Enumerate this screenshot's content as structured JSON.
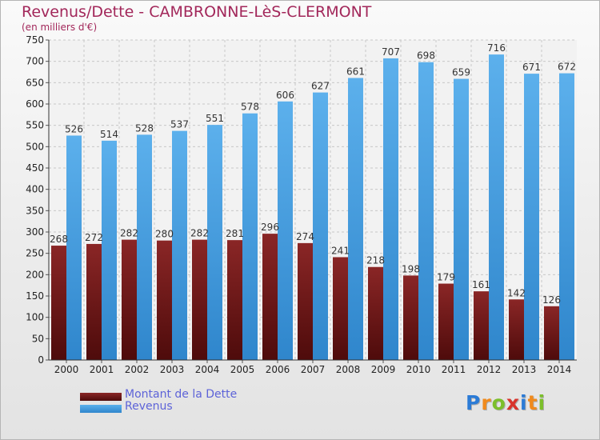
{
  "title": "Revenus/Dette - CAMBRONNE-LèS-CLERMONT",
  "subtitle": "(en milliers d'€)",
  "logo": {
    "letters": [
      "P",
      "r",
      "o",
      "x",
      "i",
      "t",
      "i"
    ]
  },
  "colors": {
    "debt": "#7a1c1c",
    "revenue": "#4ea3e2",
    "title": "#a2275a",
    "legend_text": "#5d63d8"
  },
  "chart_data": {
    "type": "bar",
    "categories": [
      "2000",
      "2001",
      "2002",
      "2003",
      "2004",
      "2005",
      "2006",
      "2007",
      "2008",
      "2009",
      "2010",
      "2011",
      "2012",
      "2013",
      "2014"
    ],
    "series": [
      {
        "name": "Montant de la Dette",
        "values": [
          268,
          272,
          282,
          280,
          282,
          281,
          296,
          274,
          241,
          218,
          198,
          179,
          161,
          142,
          126
        ]
      },
      {
        "name": "Revenus",
        "values": [
          526,
          514,
          528,
          537,
          551,
          578,
          606,
          627,
          661,
          707,
          698,
          659,
          716,
          671,
          672
        ]
      }
    ],
    "ylim": [
      0,
      750
    ],
    "yticks": [
      0,
      50,
      100,
      150,
      200,
      250,
      300,
      350,
      400,
      450,
      500,
      550,
      600,
      650,
      700,
      750
    ],
    "grid": true,
    "legend": "bottom-left"
  }
}
